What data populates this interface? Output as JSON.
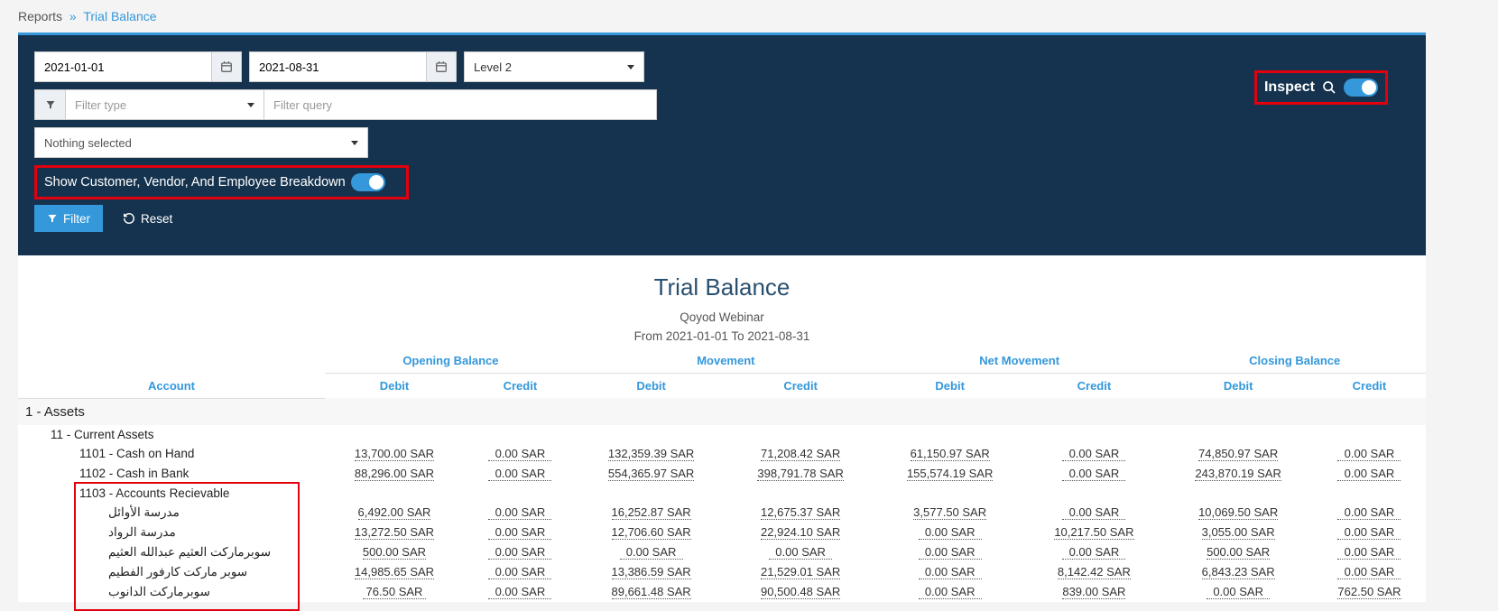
{
  "colors": {
    "accent": "#3498db",
    "header_bg": "#15334e",
    "highlight_border": "#e3000e",
    "page_bg": "#f4f4f4"
  },
  "breadcrumb": {
    "root": "Reports",
    "current": "Trial Balance"
  },
  "filters": {
    "date_from": "2021-01-01",
    "date_to": "2021-08-31",
    "level": "Level 2",
    "filter_type_placeholder": "Filter type",
    "filter_query_placeholder": "Filter query",
    "nothing_selected": "Nothing selected",
    "breakdown_label": "Show Customer, Vendor, And Employee Breakdown",
    "filter_btn": "Filter",
    "reset_btn": "Reset",
    "inspect_label": "Inspect"
  },
  "report": {
    "title": "Trial Balance",
    "subtitle": "Qoyod Webinar",
    "date_range": "From 2021-01-01 To 2021-08-31"
  },
  "columns": {
    "account": "Account",
    "groups": [
      "Opening Balance",
      "Movement",
      "Net Movement",
      "Closing Balance"
    ],
    "sub": [
      "Debit",
      "Credit"
    ]
  },
  "currency": "SAR",
  "sections": [
    {
      "label": "1 - Assets",
      "subs": [
        {
          "label": "11 - Current Assets",
          "accounts": [
            {
              "label": "1101 - Cash on Hand",
              "vals": [
                "13,700.00",
                "0.00",
                "132,359.39",
                "71,208.42",
                "61,150.97",
                "0.00",
                "74,850.97",
                "0.00"
              ]
            },
            {
              "label": "1102 - Cash in Bank",
              "vals": [
                "88,296.00",
                "0.00",
                "554,365.97",
                "398,791.78",
                "155,574.19",
                "0.00",
                "243,870.19",
                "0.00"
              ]
            },
            {
              "label": "1103 - Accounts Recievable",
              "highlight": true,
              "children": [
                {
                  "label": "مدرسة الأوائل",
                  "vals": [
                    "6,492.00",
                    "0.00",
                    "16,252.87",
                    "12,675.37",
                    "3,577.50",
                    "0.00",
                    "10,069.50",
                    "0.00"
                  ]
                },
                {
                  "label": "مدرسة الرواد",
                  "vals": [
                    "13,272.50",
                    "0.00",
                    "12,706.60",
                    "22,924.10",
                    "0.00",
                    "10,217.50",
                    "3,055.00",
                    "0.00"
                  ]
                },
                {
                  "label": "سوبرماركت العثيم عبدالله العثيم",
                  "vals": [
                    "500.00",
                    "0.00",
                    "0.00",
                    "0.00",
                    "0.00",
                    "0.00",
                    "500.00",
                    "0.00"
                  ]
                },
                {
                  "label": "سوبر ماركت كارفور الفطيم",
                  "vals": [
                    "14,985.65",
                    "0.00",
                    "13,386.59",
                    "21,529.01",
                    "0.00",
                    "8,142.42",
                    "6,843.23",
                    "0.00"
                  ]
                },
                {
                  "label": "سوبرماركت الدانوب",
                  "vals": [
                    "76.50",
                    "0.00",
                    "89,661.48",
                    "90,500.48",
                    "0.00",
                    "839.00",
                    "0.00",
                    "762.50"
                  ]
                }
              ]
            }
          ]
        }
      ]
    }
  ]
}
